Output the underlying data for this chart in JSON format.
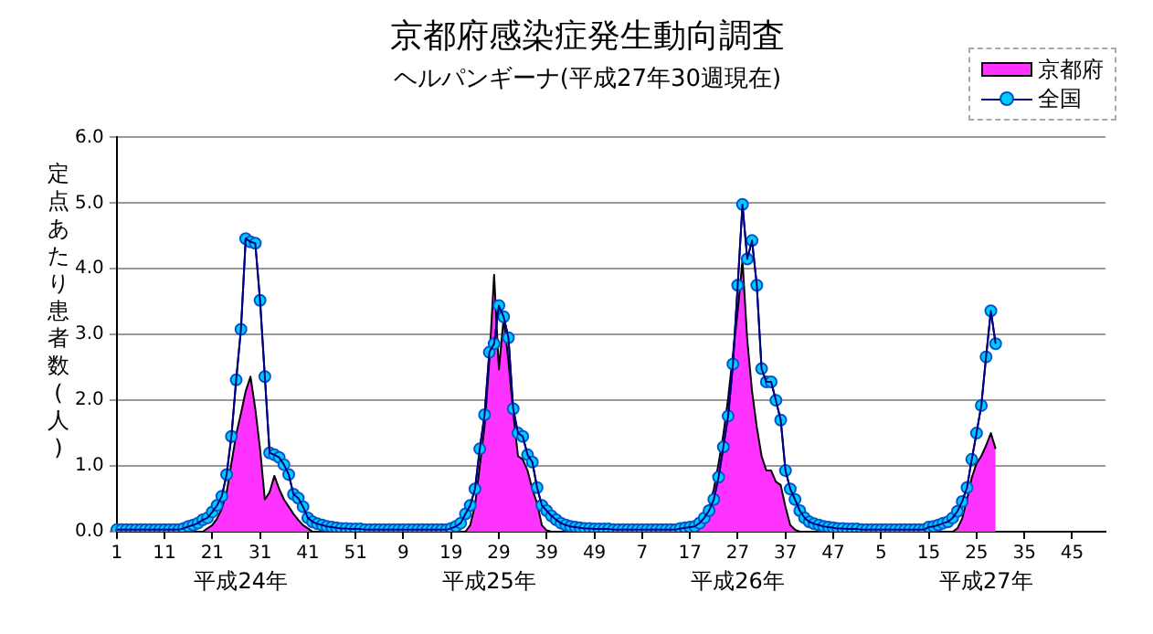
{
  "chart_data": {
    "type": "line",
    "title": "京都府感染症発生動向調査",
    "subtitle": "ヘルパンギーナ(平成27年30週現在)",
    "ylabel": "定点あたり患者数(人)",
    "categories": [
      "1",
      null,
      null,
      null,
      null,
      null,
      null,
      null,
      null,
      null,
      "11",
      null,
      null,
      null,
      null,
      null,
      null,
      null,
      null,
      null,
      "21",
      null,
      null,
      null,
      null,
      null,
      null,
      null,
      null,
      null,
      "31",
      null,
      null,
      null,
      null,
      null,
      null,
      null,
      null,
      null,
      "41",
      null,
      null,
      null,
      null,
      null,
      null,
      null,
      null,
      null,
      "51",
      null,
      null,
      null,
      null,
      null,
      null,
      null,
      null,
      null,
      "9",
      null,
      null,
      null,
      null,
      null,
      null,
      null,
      null,
      null,
      "19",
      null,
      null,
      null,
      null,
      null,
      null,
      null,
      null,
      null,
      "29",
      null,
      null,
      null,
      null,
      null,
      null,
      null,
      null,
      null,
      "39",
      null,
      null,
      null,
      null,
      null,
      null,
      null,
      null,
      null,
      "49",
      null,
      null,
      null,
      null,
      null,
      null,
      null,
      null,
      null,
      "7",
      null,
      null,
      null,
      null,
      null,
      null,
      null,
      null,
      null,
      "17",
      null,
      null,
      null,
      null,
      null,
      null,
      null,
      null,
      null,
      "27",
      null,
      null,
      null,
      null,
      null,
      null,
      null,
      null,
      null,
      "37",
      null,
      null,
      null,
      null,
      null,
      null,
      null,
      null,
      null,
      "47",
      null,
      null,
      null,
      null,
      null,
      null,
      null,
      null,
      null,
      "5",
      null,
      null,
      null,
      null,
      null,
      null,
      null,
      null,
      null,
      "15",
      null,
      null,
      null,
      null,
      null,
      null,
      null,
      null,
      null,
      "25",
      null,
      null,
      null,
      null,
      null,
      null,
      null,
      null,
      null,
      "35",
      null,
      null,
      null,
      null,
      null,
      null,
      null,
      null,
      null,
      "45",
      null,
      null,
      null,
      null,
      null,
      null,
      null
    ],
    "series": [
      {
        "name": "京都府",
        "type": "area",
        "color": "#ff33ff",
        "values": [
          0,
          0,
          0,
          0,
          0,
          0,
          0,
          0,
          0,
          0,
          0,
          0,
          0,
          0,
          0,
          0,
          0,
          0,
          0,
          0.05,
          0.1,
          0.2,
          0.35,
          0.6,
          1.04,
          1.48,
          1.8,
          2.14,
          2.36,
          1.87,
          1.26,
          0.49,
          0.6,
          0.85,
          0.65,
          0.49,
          0.38,
          0.27,
          0.18,
          0.1,
          0.05,
          0,
          0,
          0,
          0,
          0,
          0,
          0,
          0,
          0,
          0,
          0,
          0,
          0,
          0,
          0,
          0,
          0,
          0,
          0,
          0,
          0,
          0,
          0,
          0,
          0,
          0,
          0,
          0,
          0,
          0,
          0,
          0,
          0,
          0.1,
          0.4,
          1.0,
          1.6,
          2.6,
          3.91,
          2.47,
          3.25,
          2.6,
          1.81,
          1.15,
          1.1,
          0.93,
          0.65,
          0.43,
          0.1,
          0.02,
          0,
          0,
          0,
          0,
          0,
          0,
          0,
          0,
          0,
          0,
          0,
          0,
          0,
          0,
          0,
          0,
          0,
          0,
          0,
          0,
          0,
          0,
          0,
          0,
          0,
          0,
          0,
          0,
          0,
          0,
          0,
          0.08,
          0.18,
          0.38,
          0.65,
          1.04,
          1.48,
          2.03,
          2.7,
          3.36,
          4.13,
          2.92,
          2.14,
          1.59,
          1.15,
          0.93,
          0.93,
          0.76,
          0.71,
          0.38,
          0.1,
          0.03,
          0,
          0,
          0,
          0,
          0,
          0,
          0,
          0,
          0,
          0,
          0,
          0,
          0,
          0,
          0,
          0,
          0,
          0,
          0,
          0,
          0,
          0,
          0,
          0,
          0,
          0,
          0,
          0,
          0,
          0,
          0,
          0,
          0,
          0.05,
          0.2,
          0.49,
          0.82,
          1.04,
          1.15,
          1.31,
          1.5,
          1.26,
          null,
          null,
          null,
          null,
          null,
          null,
          null,
          null,
          null,
          null,
          null,
          null,
          null,
          null,
          null,
          null,
          null,
          null,
          null,
          null,
          null,
          null,
          null
        ]
      },
      {
        "name": "全国",
        "type": "line",
        "color": "#00ccff",
        "marker": "circle",
        "values": [
          0.03,
          0.03,
          0.03,
          0.03,
          0.03,
          0.03,
          0.03,
          0.03,
          0.03,
          0.03,
          0.03,
          0.03,
          0.03,
          0.03,
          0.05,
          0.08,
          0.1,
          0.13,
          0.18,
          0.21,
          0.3,
          0.4,
          0.54,
          0.87,
          1.45,
          2.31,
          3.08,
          4.46,
          4.41,
          4.39,
          3.52,
          2.36,
          1.2,
          1.17,
          1.13,
          1.02,
          0.87,
          0.57,
          0.51,
          0.38,
          0.21,
          0.15,
          0.12,
          0.1,
          0.08,
          0.07,
          0.06,
          0.05,
          0.05,
          0.04,
          0.04,
          0.04,
          0.03,
          0.03,
          0.03,
          0.03,
          0.03,
          0.03,
          0.03,
          0.03,
          0.03,
          0.03,
          0.03,
          0.03,
          0.03,
          0.03,
          0.03,
          0.03,
          0.03,
          0.03,
          0.05,
          0.08,
          0.13,
          0.27,
          0.4,
          0.65,
          1.26,
          1.78,
          2.73,
          2.86,
          3.44,
          3.27,
          2.95,
          1.87,
          1.5,
          1.45,
          1.17,
          1.06,
          0.67,
          0.4,
          0.32,
          0.24,
          0.18,
          0.13,
          0.1,
          0.08,
          0.07,
          0.06,
          0.05,
          0.05,
          0.04,
          0.04,
          0.04,
          0.04,
          0.03,
          0.03,
          0.03,
          0.03,
          0.03,
          0.03,
          0.03,
          0.03,
          0.03,
          0.03,
          0.03,
          0.03,
          0.03,
          0.03,
          0.05,
          0.06,
          0.07,
          0.08,
          0.13,
          0.21,
          0.32,
          0.49,
          0.83,
          1.29,
          1.76,
          2.55,
          3.75,
          4.98,
          4.15,
          4.43,
          3.75,
          2.48,
          2.28,
          2.28,
          2.0,
          1.7,
          0.93,
          0.65,
          0.49,
          0.32,
          0.21,
          0.15,
          0.12,
          0.1,
          0.08,
          0.07,
          0.06,
          0.05,
          0.05,
          0.04,
          0.04,
          0.04,
          0.03,
          0.03,
          0.03,
          0.03,
          0.03,
          0.03,
          0.03,
          0.03,
          0.03,
          0.03,
          0.03,
          0.03,
          0.03,
          0.03,
          0.07,
          0.08,
          0.1,
          0.13,
          0.15,
          0.21,
          0.31,
          0.46,
          0.67,
          1.1,
          1.5,
          1.92,
          2.66,
          3.36,
          2.86,
          null,
          null,
          null,
          null,
          null,
          null,
          null,
          null,
          null,
          null,
          null,
          null,
          null,
          null,
          null,
          null,
          null,
          null,
          null,
          null,
          null,
          null,
          null
        ]
      }
    ],
    "ylim": [
      0,
      6
    ],
    "yticks": [
      {
        "value": 0,
        "label": "0.0"
      },
      {
        "value": 1,
        "label": "1.0"
      },
      {
        "value": 2,
        "label": "2.0"
      },
      {
        "value": 3,
        "label": "3.0"
      },
      {
        "value": 4,
        "label": "4.0"
      },
      {
        "value": 5,
        "label": "5.0"
      },
      {
        "value": 6,
        "label": "6.0"
      }
    ],
    "grid": "y",
    "legend": "top right",
    "line_style": "solid",
    "annotations": [
      "平成24年",
      "平成25年",
      "平成26年",
      "平成27年"
    ]
  }
}
